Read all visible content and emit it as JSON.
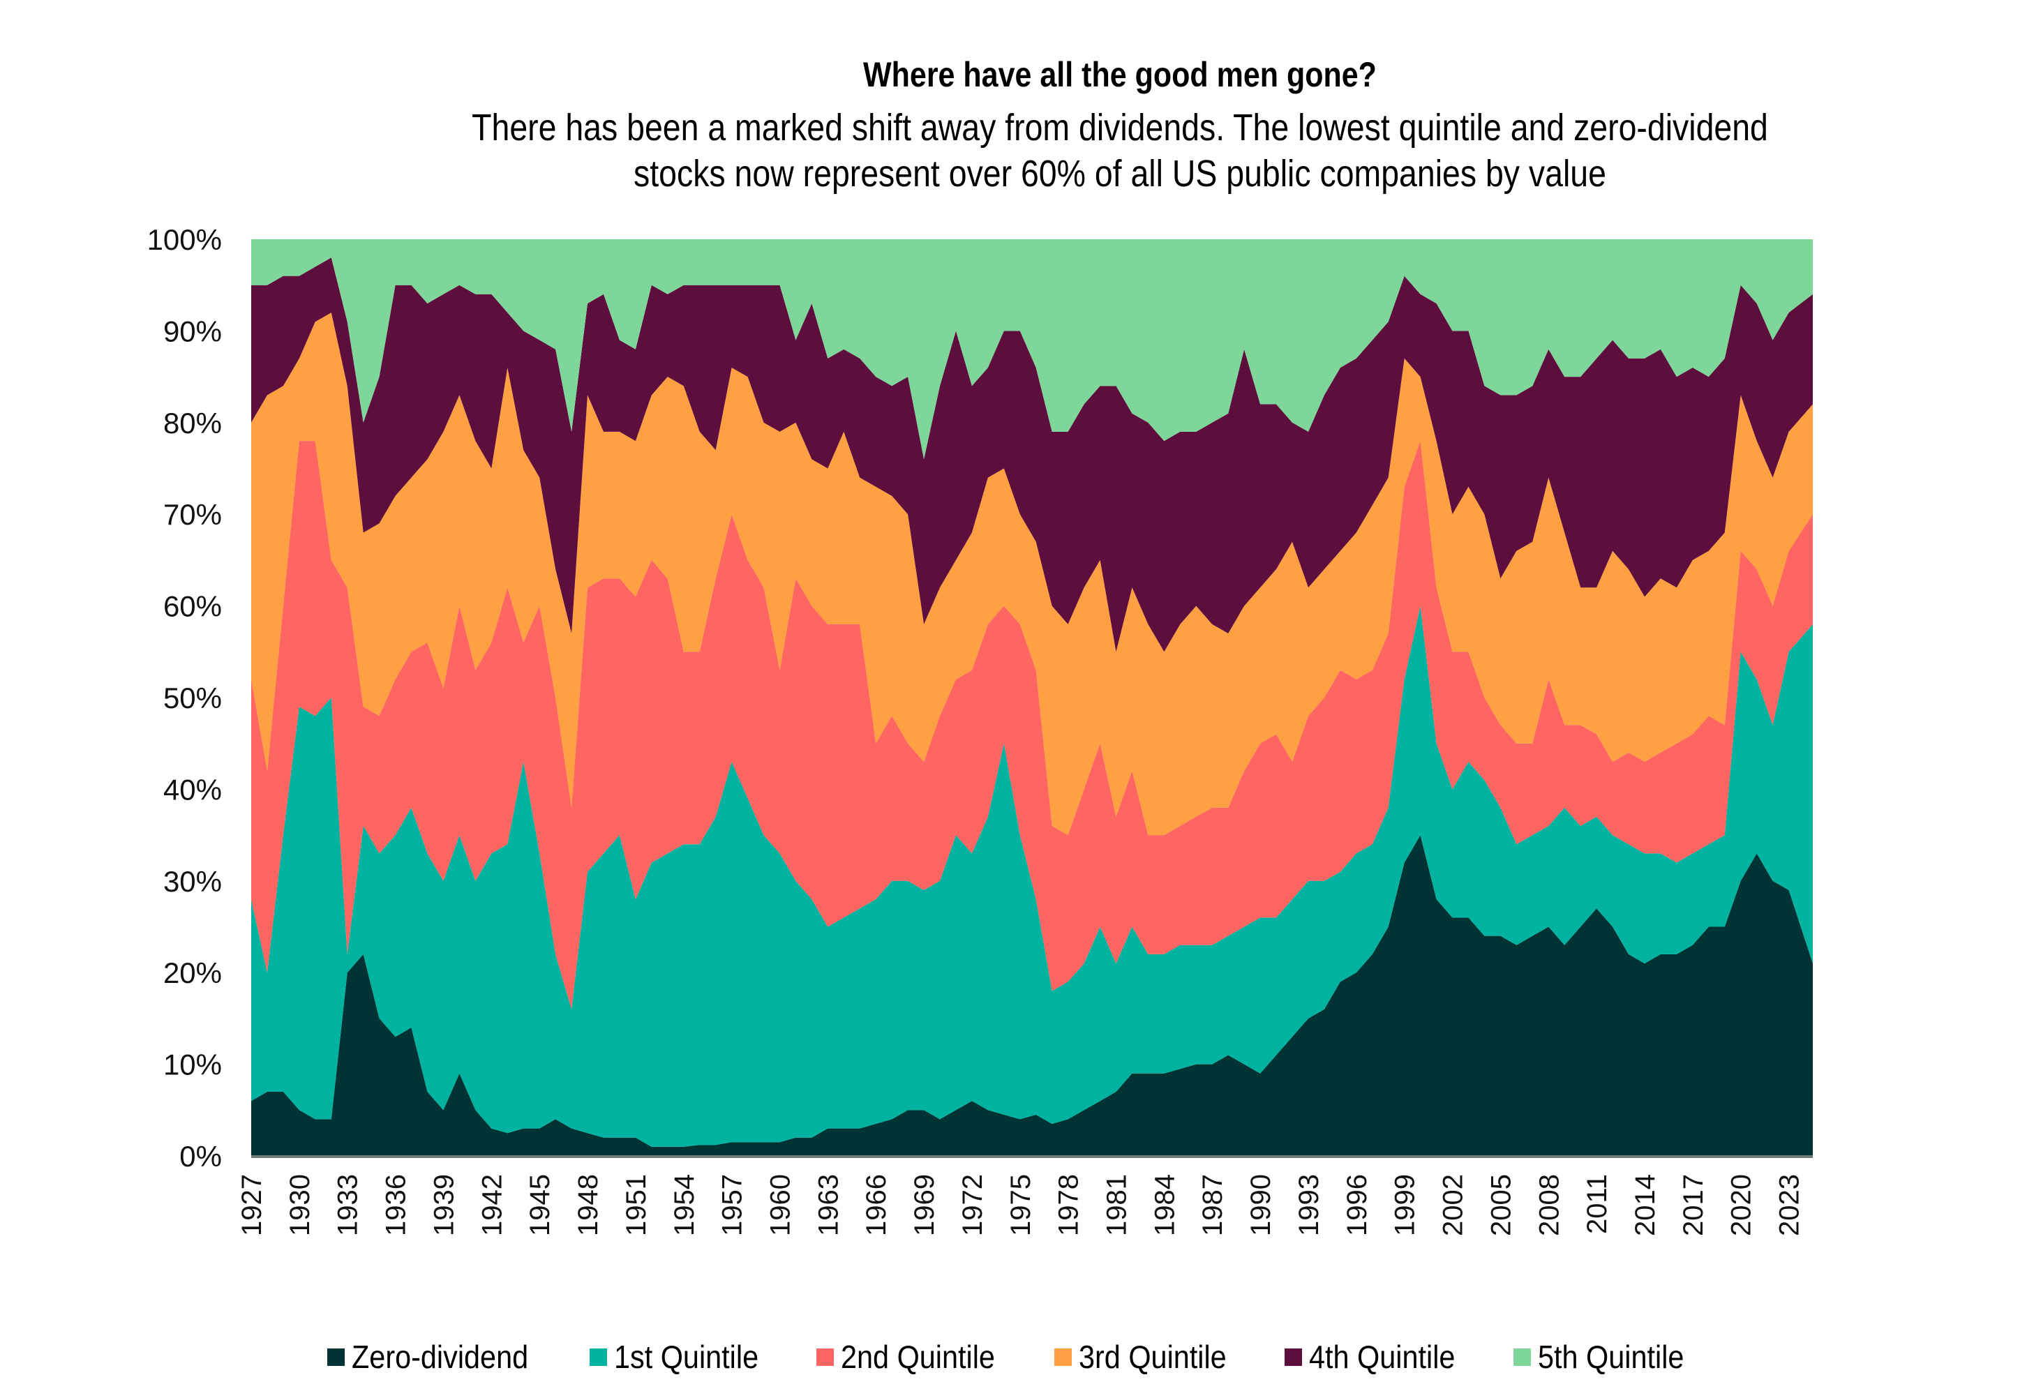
{
  "chart_data": {
    "type": "area",
    "stacked": true,
    "normalized": true,
    "title": "Where have all the good men gone?",
    "subtitle": [
      "There has been a marked shift away from dividends. The lowest quintile and zero-dividend",
      "stocks now represent over 60% of all US public companies by value"
    ],
    "xlabel": "",
    "ylabel": "",
    "ylim": [
      0,
      100
    ],
    "yticks": [
      "0%",
      "10%",
      "20%",
      "30%",
      "40%",
      "50%",
      "60%",
      "70%",
      "80%",
      "90%",
      "100%"
    ],
    "xticks": [
      "1927",
      "1930",
      "1933",
      "1936",
      "1939",
      "1942",
      "1945",
      "1948",
      "1951",
      "1954",
      "1957",
      "1960",
      "1963",
      "1966",
      "1969",
      "1972",
      "1975",
      "1978",
      "1981",
      "1984",
      "1987",
      "1990",
      "1993",
      "1996",
      "1999",
      "2002",
      "2005",
      "2008",
      "2011",
      "2014",
      "2017",
      "2020",
      "2023"
    ],
    "xlim": [
      1927,
      2024.5
    ],
    "grid": false,
    "legend_position": "bottom",
    "x": [
      1927,
      1928,
      1929,
      1930,
      1931,
      1932,
      1933,
      1934,
      1935,
      1936,
      1937,
      1938,
      1939,
      1940,
      1941,
      1942,
      1943,
      1944,
      1945,
      1946,
      1947,
      1948,
      1949,
      1950,
      1951,
      1952,
      1953,
      1954,
      1955,
      1956,
      1957,
      1958,
      1959,
      1960,
      1961,
      1962,
      1963,
      1964,
      1965,
      1966,
      1967,
      1968,
      1969,
      1970,
      1971,
      1972,
      1973,
      1974,
      1975,
      1976,
      1977,
      1978,
      1979,
      1980,
      1981,
      1982,
      1983,
      1984,
      1985,
      1986,
      1987,
      1988,
      1989,
      1990,
      1991,
      1992,
      1993,
      1994,
      1995,
      1996,
      1997,
      1998,
      1999,
      2000,
      2001,
      2002,
      2003,
      2004,
      2005,
      2006,
      2007,
      2008,
      2009,
      2010,
      2011,
      2012,
      2013,
      2014,
      2015,
      2016,
      2017,
      2018,
      2019,
      2020,
      2021,
      2022,
      2023,
      2024
    ],
    "series": [
      {
        "name": "Zero-dividend",
        "color": "#003434",
        "values": [
          6,
          7,
          7,
          5,
          4,
          4,
          20,
          22,
          15,
          13,
          14,
          7,
          5,
          9,
          5,
          3,
          2.5,
          3,
          3,
          4,
          3,
          2.5,
          2,
          2,
          2,
          1,
          1,
          1,
          1.2,
          1.2,
          1.5,
          1.5,
          1.5,
          1.5,
          2,
          2,
          3,
          3,
          3,
          3.5,
          4,
          5,
          5,
          4,
          5,
          6,
          5,
          4.5,
          4,
          4.5,
          3.5,
          4,
          5,
          6,
          7,
          9,
          9,
          9,
          9.5,
          10,
          10,
          11,
          10,
          9,
          11,
          13,
          15,
          16,
          19,
          20,
          22,
          25,
          32,
          35,
          28,
          26,
          26,
          24,
          24,
          23,
          24,
          25,
          23,
          25,
          27,
          25,
          22,
          21,
          22,
          22,
          23,
          25,
          25,
          30,
          33,
          30,
          29,
          21
        ]
      },
      {
        "name": "1st Quintile",
        "color": "#00B2A0",
        "values": [
          22,
          13,
          28,
          44,
          44,
          46,
          2,
          14,
          18,
          22,
          24,
          26,
          25,
          26,
          25,
          30,
          31.5,
          40,
          30,
          18,
          13,
          28.5,
          31,
          33,
          26,
          31,
          32,
          33,
          32.8,
          35.8,
          41.5,
          37.5,
          33.5,
          31.5,
          28,
          26,
          22,
          23,
          24,
          24.5,
          26,
          25,
          24,
          26,
          30,
          27,
          32,
          40.5,
          31,
          23.5,
          14.5,
          15,
          16,
          19,
          14,
          16,
          13,
          13,
          13.5,
          13,
          13,
          13,
          15,
          17,
          15,
          15,
          15,
          14,
          12,
          13,
          12,
          13,
          20,
          25,
          17,
          14,
          17,
          17,
          14,
          11,
          11,
          11,
          15,
          11,
          10,
          10,
          12,
          12,
          11,
          10,
          10,
          9,
          10,
          25,
          19,
          17,
          26,
          37
        ]
      },
      {
        "name": "2nd Quintile",
        "color": "#FF6661",
        "values": [
          24,
          22,
          25,
          29,
          30,
          15,
          40,
          13,
          15,
          17,
          17,
          23,
          21,
          25,
          23,
          23,
          28,
          13,
          27,
          28,
          22,
          31,
          30,
          28,
          33,
          33,
          30,
          21,
          21,
          26,
          27,
          26,
          27,
          20,
          33,
          32,
          33,
          32,
          31,
          17,
          18,
          15,
          14,
          18,
          17,
          20,
          21,
          15,
          23,
          25,
          18,
          16,
          19,
          20,
          16,
          17,
          13,
          13,
          13,
          14,
          15,
          14,
          17,
          19,
          20,
          15,
          18,
          20,
          22,
          19,
          19,
          19,
          21,
          18,
          17,
          15,
          12,
          9,
          9,
          11,
          10,
          16,
          9,
          11,
          9,
          8,
          10,
          10,
          11,
          13,
          13,
          14,
          12,
          11,
          12,
          13,
          11,
          12
        ]
      },
      {
        "name": "3rd Quintile",
        "color": "#FFA043",
        "values": [
          28,
          41,
          24,
          9,
          13,
          27,
          22,
          19,
          21,
          20,
          19,
          20,
          28,
          23,
          25,
          19,
          24,
          21,
          14,
          14,
          19,
          21,
          16,
          16,
          17,
          18,
          22,
          29,
          24,
          14,
          16,
          20,
          18,
          26,
          17,
          16,
          17,
          21,
          16,
          28,
          24,
          25,
          15,
          14,
          13,
          15,
          16,
          15,
          12,
          14,
          24,
          23,
          22,
          20,
          18,
          20,
          23,
          20,
          22,
          23,
          20,
          19,
          18,
          17,
          18,
          24,
          14,
          14,
          13,
          16,
          18,
          17,
          14,
          7,
          16,
          15,
          18,
          20,
          16,
          21,
          22,
          22,
          21,
          15,
          16,
          23,
          20,
          18,
          19,
          17,
          19,
          18,
          21,
          17,
          14,
          14,
          13,
          12
        ]
      },
      {
        "name": "4th Quintile",
        "color": "#5E0E3C",
        "values": [
          15,
          12,
          12,
          9,
          6,
          6,
          7,
          12,
          16,
          23,
          21,
          17,
          15,
          12,
          16,
          19,
          6,
          13,
          15,
          24,
          22,
          10,
          15,
          10,
          10,
          12,
          9,
          11,
          16,
          18,
          9,
          10,
          15,
          16,
          9,
          17,
          12,
          9,
          13,
          12,
          12,
          15,
          18,
          22,
          25,
          16,
          12,
          15,
          20,
          19,
          19,
          21,
          20,
          19,
          29,
          19,
          22,
          23,
          21,
          19,
          22,
          24,
          28,
          20,
          18,
          13,
          17,
          19,
          20,
          19,
          18,
          17,
          9,
          9,
          15,
          20,
          17,
          14,
          20,
          17,
          17,
          14,
          17,
          23,
          25,
          23,
          23,
          26,
          25,
          23,
          21,
          19,
          19,
          12,
          15,
          15,
          13,
          12
        ]
      },
      {
        "name": "5th Quintile",
        "color": "#7FD69A",
        "values": [
          5,
          5,
          4,
          4,
          3,
          2,
          9,
          20,
          15,
          5,
          5,
          7,
          6,
          5,
          6,
          6,
          8,
          10,
          11,
          12,
          21,
          7,
          6,
          11,
          12,
          5,
          6,
          5,
          5,
          5,
          5,
          5,
          5,
          5,
          11,
          7,
          13,
          12,
          13,
          15,
          16,
          15,
          24,
          16,
          10,
          16,
          14,
          10,
          10,
          14,
          21,
          21,
          18,
          16,
          16,
          19,
          20,
          22,
          21,
          21,
          20,
          19,
          12,
          18,
          18,
          20,
          21,
          17,
          14,
          13,
          11,
          9,
          4,
          6,
          7,
          10,
          10,
          16,
          17,
          17,
          16,
          12,
          15,
          15,
          13,
          11,
          13,
          13,
          12,
          15,
          14,
          15,
          13,
          5,
          7,
          11,
          8,
          6
        ]
      }
    ]
  }
}
